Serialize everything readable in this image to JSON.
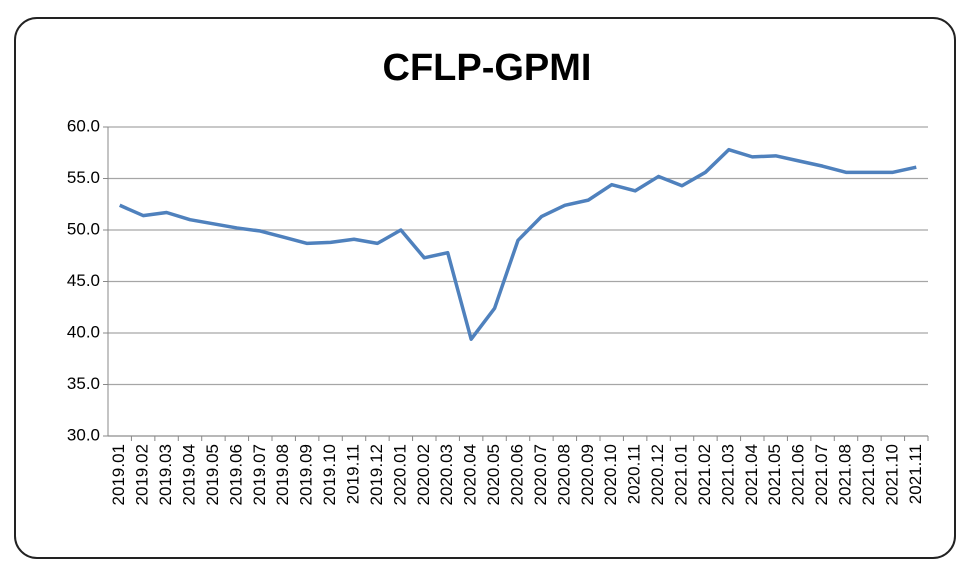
{
  "chart_data": {
    "type": "line",
    "title": "CFLP-GPMI",
    "categories": [
      "2019.01",
      "2019.02",
      "2019.03",
      "2019.04",
      "2019.05",
      "2019.06",
      "2019.07",
      "2019.08",
      "2019.09",
      "2019.10",
      "2019.11",
      "2019.12",
      "2020.01",
      "2020.02",
      "2020.03",
      "2020.04",
      "2020.05",
      "2020.06",
      "2020.07",
      "2020.08",
      "2020.09",
      "2020.10",
      "2020.11",
      "2020.12",
      "2021.01",
      "2021.02",
      "2021.03",
      "2021.04",
      "2021.05",
      "2021.06",
      "2021.07",
      "2021.08",
      "2021.09",
      "2021.10",
      "2021.11"
    ],
    "values": [
      52.4,
      51.4,
      51.7,
      51.0,
      50.6,
      50.2,
      49.9,
      49.3,
      48.7,
      48.8,
      49.1,
      48.7,
      50.0,
      47.3,
      47.8,
      39.4,
      42.4,
      49.0,
      51.3,
      52.4,
      52.9,
      54.4,
      53.8,
      55.2,
      54.3,
      55.6,
      57.8,
      57.1,
      57.2,
      56.7,
      56.2,
      55.6,
      55.6,
      55.6,
      56.1
    ],
    "color": "#4f81bd",
    "ylim": [
      30,
      60
    ],
    "yticks": [
      {
        "value": 30,
        "label": "30.0"
      },
      {
        "value": 35,
        "label": "35.0"
      },
      {
        "value": 40,
        "label": "40.0"
      },
      {
        "value": 45,
        "label": "45.0"
      },
      {
        "value": 50,
        "label": "50.0"
      },
      {
        "value": 55,
        "label": "55.0"
      },
      {
        "value": 60,
        "label": "60.0"
      }
    ],
    "grid": true
  }
}
